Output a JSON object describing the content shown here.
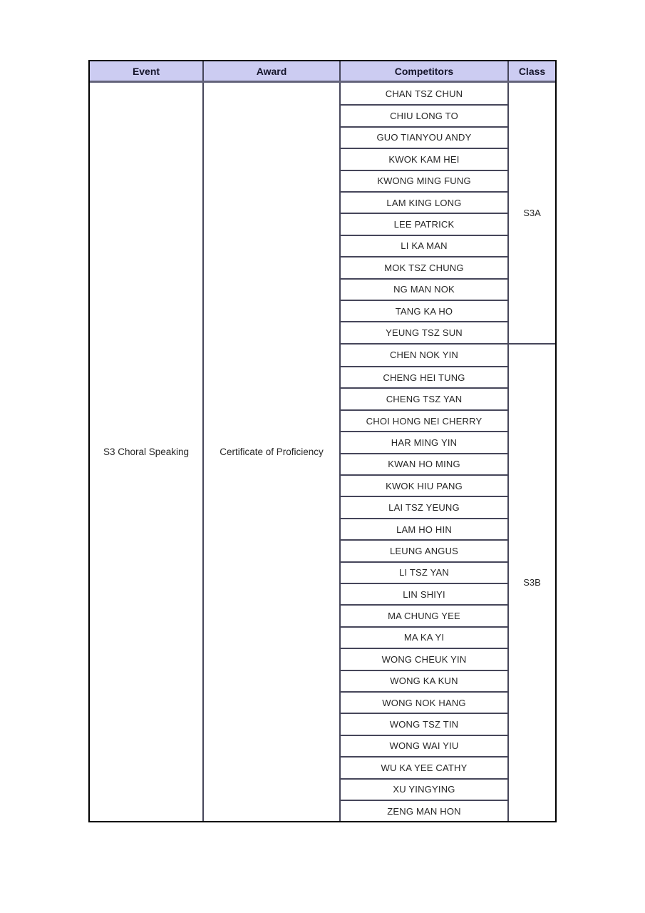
{
  "table": {
    "headers": [
      "Event",
      "Award",
      "Competitors",
      "Class"
    ],
    "event": "S3 Choral Speaking",
    "award": "Certificate of Proficiency",
    "groups": [
      {
        "class": "S3A",
        "competitors": [
          "CHAN TSZ CHUN",
          "CHIU LONG TO",
          "GUO TIANYOU ANDY",
          "KWOK KAM HEI",
          "KWONG MING FUNG",
          "LAM KING LONG",
          "LEE PATRICK",
          "LI KA MAN",
          "MOK TSZ CHUNG",
          "NG MAN NOK",
          "TANG KA HO",
          "YEUNG TSZ SUN"
        ]
      },
      {
        "class": "S3B",
        "competitors": [
          "CHEN NOK YIN",
          "CHENG HEI TUNG",
          "CHENG TSZ YAN",
          "CHOI HONG NEI CHERRY",
          "HAR MING YIN",
          "KWAN HO MING",
          "KWOK HIU PANG",
          "LAI TSZ YEUNG",
          "LAM HO HIN",
          "LEUNG ANGUS",
          "LI TSZ YAN",
          "LIN SHIYI",
          "MA CHUNG YEE",
          "MA KA YI",
          "WONG CHEUK YIN",
          "WONG KA KUN",
          "WONG NOK HANG",
          "WONG TSZ TIN",
          "WONG WAI YIU",
          "WU KA YEE CATHY",
          "XU YINGYING",
          "ZENG MAN HON"
        ]
      }
    ],
    "colors": {
      "header_bg": "#ccccf2",
      "header_text": "#15152b",
      "header_bottom_border": "#63637a",
      "outer_border": "#000000",
      "inner_border": "#46465a",
      "cell_text": "#262626"
    }
  }
}
